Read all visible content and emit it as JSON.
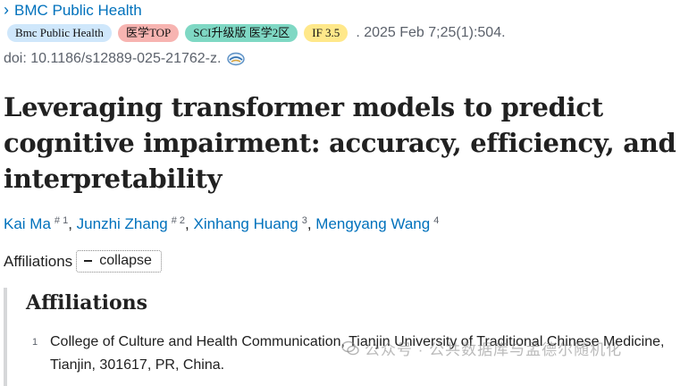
{
  "journal": {
    "name": "BMC Public Health"
  },
  "badges": [
    {
      "label": "Bmc Public Health",
      "color": "#cfe7fb"
    },
    {
      "label": "医学TOP",
      "color": "#f7b4b1"
    },
    {
      "label": "SCI升级版 医学2区",
      "color": "#7fd8c4"
    },
    {
      "label": "IF 3.5",
      "color": "#ffe88a"
    }
  ],
  "citation": ". 2025 Feb 7;25(1):504.",
  "doi": "doi: 10.1186/s12889-025-21762-z.",
  "title": "Leveraging transformer models to predict cognitive impairment: accuracy, efficiency, and interpretability",
  "authors": [
    {
      "name": "Kai Ma",
      "sup": "# 1"
    },
    {
      "name": "Junzhi Zhang",
      "sup": "# 2"
    },
    {
      "name": "Xinhang Huang",
      "sup": "3"
    },
    {
      "name": "Mengyang Wang",
      "sup": "4"
    }
  ],
  "affiliations_label": "Affiliations",
  "collapse_label": "collapse",
  "affiliations_heading": "Affiliations",
  "affiliations": [
    {
      "num": "1",
      "text": "College of Culture and Health Communication, Tianjin University of Traditional Chinese Medicine, Tianjin, 301617, PR, China."
    }
  ],
  "watermark": "公众号 · 公共数据库与孟德尔随机化"
}
